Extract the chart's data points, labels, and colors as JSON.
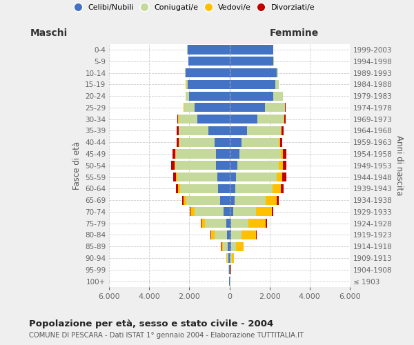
{
  "age_groups": [
    "100+",
    "95-99",
    "90-94",
    "85-89",
    "80-84",
    "75-79",
    "70-74",
    "65-69",
    "60-64",
    "55-59",
    "50-54",
    "45-49",
    "40-44",
    "35-39",
    "30-34",
    "25-29",
    "20-24",
    "15-19",
    "10-14",
    "5-9",
    "0-4"
  ],
  "birth_years": [
    "≤ 1903",
    "1904-1908",
    "1909-1913",
    "1914-1918",
    "1919-1923",
    "1924-1928",
    "1929-1933",
    "1934-1938",
    "1939-1943",
    "1944-1948",
    "1949-1953",
    "1954-1958",
    "1959-1963",
    "1964-1968",
    "1969-1973",
    "1974-1978",
    "1979-1983",
    "1984-1988",
    "1989-1993",
    "1994-1998",
    "1999-2003"
  ],
  "maschi_celibi": [
    8,
    15,
    40,
    90,
    130,
    170,
    300,
    480,
    580,
    620,
    680,
    690,
    750,
    1050,
    1600,
    1750,
    2000,
    2100,
    2200,
    2050,
    2100
  ],
  "maschi_coniugati": [
    8,
    25,
    70,
    230,
    620,
    1050,
    1450,
    1680,
    1880,
    1980,
    2020,
    1980,
    1750,
    1480,
    950,
    520,
    190,
    70,
    25,
    8,
    8
  ],
  "maschi_vedovi": [
    4,
    8,
    35,
    90,
    180,
    180,
    185,
    140,
    95,
    75,
    45,
    25,
    18,
    8,
    8,
    8,
    4,
    4,
    4,
    4,
    4
  ],
  "maschi_divorziati": [
    2,
    4,
    8,
    12,
    18,
    28,
    38,
    75,
    115,
    145,
    165,
    145,
    125,
    95,
    55,
    25,
    8,
    4,
    4,
    4,
    4
  ],
  "femmine_nubili": [
    8,
    15,
    40,
    80,
    90,
    90,
    180,
    240,
    290,
    340,
    390,
    490,
    590,
    880,
    1380,
    1780,
    2180,
    2280,
    2360,
    2180,
    2180
  ],
  "femmine_coniugate": [
    8,
    25,
    70,
    230,
    520,
    860,
    1150,
    1550,
    1870,
    2020,
    2080,
    2080,
    1880,
    1680,
    1330,
    980,
    480,
    180,
    70,
    25,
    12
  ],
  "femmine_vedove": [
    4,
    25,
    120,
    380,
    720,
    870,
    770,
    580,
    390,
    290,
    190,
    115,
    55,
    25,
    18,
    12,
    8,
    4,
    4,
    4,
    4
  ],
  "femmine_divorziate": [
    2,
    4,
    8,
    12,
    18,
    48,
    75,
    95,
    145,
    175,
    175,
    145,
    115,
    125,
    75,
    38,
    12,
    4,
    4,
    4,
    4
  ],
  "col_celibi": "#4472c4",
  "col_coniugati": "#c5d99a",
  "col_vedovi": "#ffc000",
  "col_divorziati": "#c00000",
  "xlim": 6000,
  "xticks": [
    -6000,
    -4000,
    -2000,
    0,
    2000,
    4000,
    6000
  ],
  "title": "Popolazione per età, sesso e stato civile - 2004",
  "subtitle": "COMUNE DI PESCARA - Dati ISTAT 1° gennaio 2004 - Elaborazione TUTTITALIA.IT",
  "ylabel_left": "Fasce di età",
  "ylabel_right": "Anni di nascita",
  "label_maschi": "Maschi",
  "label_femmine": "Femmine",
  "legend_labels": [
    "Celibi/Nubili",
    "Coniugati/e",
    "Vedovi/e",
    "Divorziati/e"
  ],
  "bg_color": "#efefef",
  "plot_bg": "#ffffff"
}
